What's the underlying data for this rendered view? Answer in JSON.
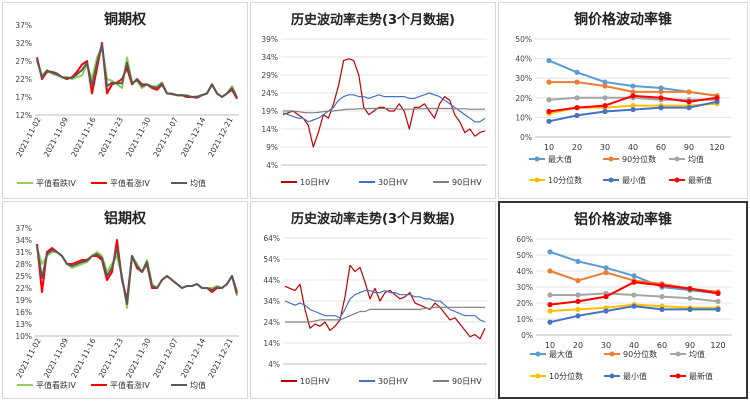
{
  "chart_data": [
    {
      "type": "line",
      "title": "铜期权",
      "ylim": [
        0.12,
        0.37
      ],
      "yticks": [
        "12%",
        "17%",
        "22%",
        "27%",
        "32%",
        "37%"
      ],
      "ytick_values": [
        0.12,
        0.17,
        0.22,
        0.27,
        0.32,
        0.37
      ],
      "xticks": [
        "2021-11-02",
        "2021-11-09",
        "2021-11-16",
        "2021-11-23",
        "2021-11-30",
        "2021-12-07",
        "2021-12-14",
        "2021-12-21"
      ],
      "legend_position": "bottom",
      "series": [
        {
          "name": "平值看跌IV",
          "color": "#92d050",
          "values": [
            0.27,
            0.23,
            0.245,
            0.235,
            0.23,
            0.225,
            0.225,
            0.22,
            0.225,
            0.23,
            0.26,
            0.22,
            0.28,
            0.31,
            0.22,
            0.215,
            0.205,
            0.195,
            0.28,
            0.21,
            0.215,
            0.195,
            0.205,
            0.2,
            0.2,
            0.21,
            0.18,
            0.18,
            0.175,
            0.175,
            0.175,
            0.17,
            0.172,
            0.175,
            0.18,
            0.205,
            0.18,
            0.17,
            0.18,
            0.2,
            0.17
          ]
        },
        {
          "name": "平值看涨IV",
          "color": "#ff0000",
          "values": [
            0.28,
            0.22,
            0.24,
            0.24,
            0.235,
            0.225,
            0.22,
            0.225,
            0.24,
            0.26,
            0.27,
            0.18,
            0.25,
            0.32,
            0.18,
            0.205,
            0.21,
            0.22,
            0.25,
            0.205,
            0.22,
            0.205,
            0.205,
            0.195,
            0.19,
            0.205,
            0.18,
            0.178,
            0.175,
            0.175,
            0.17,
            0.17,
            0.168,
            0.175,
            0.18,
            0.205,
            0.18,
            0.17,
            0.18,
            0.19,
            0.165
          ]
        },
        {
          "name": "均值",
          "color": "#595959",
          "values": [
            0.275,
            0.225,
            0.243,
            0.238,
            0.233,
            0.225,
            0.223,
            0.223,
            0.233,
            0.245,
            0.265,
            0.2,
            0.265,
            0.315,
            0.2,
            0.21,
            0.208,
            0.208,
            0.265,
            0.208,
            0.218,
            0.2,
            0.205,
            0.198,
            0.195,
            0.208,
            0.18,
            0.179,
            0.175,
            0.175,
            0.173,
            0.17,
            0.17,
            0.175,
            0.18,
            0.205,
            0.18,
            0.17,
            0.18,
            0.195,
            0.168
          ]
        }
      ]
    },
    {
      "type": "line",
      "title": "历史波动率走势(3个月数据)",
      "ylim": [
        0.04,
        0.39
      ],
      "yticks": [
        "4%",
        "9%",
        "14%",
        "19%",
        "24%",
        "29%",
        "34%",
        "39%"
      ],
      "ytick_values": [
        0.04,
        0.09,
        0.14,
        0.19,
        0.24,
        0.29,
        0.34,
        0.39
      ],
      "legend_position": "bottom",
      "series": [
        {
          "name": "10日HV",
          "color": "#c00000",
          "values": [
            0.18,
            0.185,
            0.19,
            0.18,
            0.17,
            0.15,
            0.09,
            0.13,
            0.18,
            0.17,
            0.21,
            0.26,
            0.33,
            0.335,
            0.33,
            0.29,
            0.2,
            0.18,
            0.19,
            0.2,
            0.2,
            0.19,
            0.19,
            0.21,
            0.19,
            0.14,
            0.2,
            0.2,
            0.21,
            0.19,
            0.17,
            0.21,
            0.23,
            0.22,
            0.18,
            0.16,
            0.13,
            0.14,
            0.12,
            0.13,
            0.135
          ]
        },
        {
          "name": "30日HV",
          "color": "#4472c4",
          "values": [
            0.185,
            0.18,
            0.175,
            0.17,
            0.17,
            0.16,
            0.165,
            0.17,
            0.18,
            0.19,
            0.2,
            0.22,
            0.23,
            0.235,
            0.235,
            0.23,
            0.23,
            0.225,
            0.23,
            0.235,
            0.23,
            0.23,
            0.23,
            0.23,
            0.23,
            0.225,
            0.225,
            0.23,
            0.235,
            0.24,
            0.235,
            0.23,
            0.22,
            0.21,
            0.2,
            0.19,
            0.18,
            0.17,
            0.16,
            0.16,
            0.17
          ]
        },
        {
          "name": "90日HV",
          "color": "#7f7f7f",
          "values": [
            0.19,
            0.19,
            0.19,
            0.188,
            0.186,
            0.185,
            0.185,
            0.186,
            0.188,
            0.19,
            0.19,
            0.192,
            0.194,
            0.195,
            0.195,
            0.196,
            0.196,
            0.197,
            0.197,
            0.197,
            0.197,
            0.197,
            0.196,
            0.195,
            0.195,
            0.195,
            0.195,
            0.196,
            0.196,
            0.197,
            0.197,
            0.197,
            0.197,
            0.197,
            0.196,
            0.196,
            0.196,
            0.195,
            0.195,
            0.195,
            0.195
          ]
        }
      ]
    },
    {
      "type": "line",
      "title": "铜价格波动率锥",
      "categories": [
        "10",
        "20",
        "30",
        "40",
        "60",
        "90",
        "120"
      ],
      "ylim": [
        0,
        0.5
      ],
      "yticks": [
        "0%",
        "10%",
        "20%",
        "30%",
        "40%",
        "50%"
      ],
      "ytick_values": [
        0,
        0.1,
        0.2,
        0.3,
        0.4,
        0.5
      ],
      "legend_position": "bottom",
      "series": [
        {
          "name": "最大值",
          "color": "#5b9bd5",
          "values": [
            0.39,
            0.33,
            0.28,
            0.26,
            0.25,
            0.23,
            0.21
          ]
        },
        {
          "name": "90分位数",
          "color": "#ed7d31",
          "values": [
            0.28,
            0.28,
            0.26,
            0.23,
            0.23,
            0.23,
            0.21
          ]
        },
        {
          "name": "均值",
          "color": "#a5a5a5",
          "values": [
            0.19,
            0.2,
            0.2,
            0.2,
            0.19,
            0.19,
            0.19
          ]
        },
        {
          "name": "10分位数",
          "color": "#ffc000",
          "values": [
            0.12,
            0.15,
            0.15,
            0.16,
            0.16,
            0.16,
            0.17
          ]
        },
        {
          "name": "最小值",
          "color": "#4472c4",
          "values": [
            0.08,
            0.11,
            0.13,
            0.14,
            0.15,
            0.15,
            0.18
          ]
        },
        {
          "name": "最新值",
          "color": "#ff0000",
          "values": [
            0.13,
            0.15,
            0.16,
            0.21,
            0.2,
            0.18,
            0.2
          ]
        }
      ]
    },
    {
      "type": "line",
      "title": "铝期权",
      "ylim": [
        0.1,
        0.37
      ],
      "yticks": [
        "10%",
        "13%",
        "16%",
        "19%",
        "22%",
        "25%",
        "28%",
        "31%",
        "34%",
        "37%"
      ],
      "ytick_values": [
        0.1,
        0.13,
        0.16,
        0.19,
        0.22,
        0.25,
        0.28,
        0.31,
        0.34,
        0.37
      ],
      "xticks": [
        "2021-11-02",
        "2021-11-09",
        "2021-11-16",
        "2021-11-23",
        "2021-11-30",
        "2021-12-07",
        "2021-12-14",
        "2021-12-21"
      ],
      "legend_position": "bottom",
      "series": [
        {
          "name": "平值看跌IV",
          "color": "#92d050",
          "values": [
            0.32,
            0.28,
            0.3,
            0.31,
            0.31,
            0.3,
            0.28,
            0.27,
            0.275,
            0.28,
            0.285,
            0.3,
            0.31,
            0.3,
            0.26,
            0.28,
            0.3,
            0.25,
            0.17,
            0.3,
            0.28,
            0.26,
            0.29,
            0.23,
            0.22,
            0.24,
            0.25,
            0.24,
            0.23,
            0.22,
            0.225,
            0.225,
            0.23,
            0.22,
            0.22,
            0.22,
            0.225,
            0.22,
            0.23,
            0.25,
            0.2
          ]
        },
        {
          "name": "平值看涨IV",
          "color": "#ff0000",
          "values": [
            0.33,
            0.21,
            0.31,
            0.32,
            0.31,
            0.3,
            0.28,
            0.28,
            0.285,
            0.29,
            0.29,
            0.3,
            0.3,
            0.29,
            0.24,
            0.26,
            0.34,
            0.24,
            0.19,
            0.3,
            0.27,
            0.26,
            0.28,
            0.22,
            0.22,
            0.24,
            0.25,
            0.24,
            0.23,
            0.22,
            0.225,
            0.225,
            0.23,
            0.22,
            0.22,
            0.21,
            0.22,
            0.22,
            0.23,
            0.25,
            0.21
          ]
        },
        {
          "name": "均值",
          "color": "#595959",
          "values": [
            0.325,
            0.245,
            0.305,
            0.315,
            0.31,
            0.3,
            0.28,
            0.275,
            0.28,
            0.285,
            0.288,
            0.3,
            0.305,
            0.295,
            0.25,
            0.27,
            0.32,
            0.245,
            0.18,
            0.3,
            0.275,
            0.26,
            0.285,
            0.225,
            0.22,
            0.24,
            0.25,
            0.24,
            0.23,
            0.22,
            0.225,
            0.225,
            0.23,
            0.22,
            0.22,
            0.215,
            0.222,
            0.22,
            0.23,
            0.25,
            0.205
          ]
        }
      ]
    },
    {
      "type": "line",
      "title": "历史波动率走势(3个月数据)",
      "ylim": [
        0.04,
        0.64
      ],
      "yticks": [
        "4%",
        "14%",
        "24%",
        "34%",
        "44%",
        "54%",
        "64%"
      ],
      "ytick_values": [
        0.04,
        0.14,
        0.24,
        0.34,
        0.44,
        0.54,
        0.64
      ],
      "legend_position": "bottom",
      "series": [
        {
          "name": "10日HV",
          "color": "#c00000",
          "values": [
            0.41,
            0.4,
            0.39,
            0.42,
            0.3,
            0.21,
            0.23,
            0.22,
            0.24,
            0.2,
            0.22,
            0.25,
            0.36,
            0.51,
            0.48,
            0.5,
            0.43,
            0.35,
            0.4,
            0.34,
            0.38,
            0.39,
            0.37,
            0.35,
            0.36,
            0.38,
            0.33,
            0.32,
            0.31,
            0.3,
            0.33,
            0.31,
            0.28,
            0.25,
            0.26,
            0.23,
            0.2,
            0.17,
            0.18,
            0.16,
            0.21
          ]
        },
        {
          "name": "30日HV",
          "color": "#4472c4",
          "values": [
            0.34,
            0.33,
            0.32,
            0.33,
            0.32,
            0.3,
            0.29,
            0.28,
            0.27,
            0.27,
            0.27,
            0.26,
            0.3,
            0.35,
            0.37,
            0.38,
            0.39,
            0.39,
            0.38,
            0.38,
            0.39,
            0.38,
            0.38,
            0.37,
            0.37,
            0.37,
            0.36,
            0.36,
            0.35,
            0.35,
            0.34,
            0.34,
            0.32,
            0.3,
            0.29,
            0.28,
            0.27,
            0.27,
            0.27,
            0.25,
            0.24
          ]
        },
        {
          "name": "90日HV",
          "color": "#7f7f7f",
          "values": [
            0.24,
            0.24,
            0.24,
            0.24,
            0.24,
            0.24,
            0.245,
            0.25,
            0.25,
            0.25,
            0.25,
            0.25,
            0.26,
            0.27,
            0.28,
            0.29,
            0.29,
            0.3,
            0.3,
            0.3,
            0.3,
            0.3,
            0.3,
            0.3,
            0.3,
            0.3,
            0.3,
            0.3,
            0.305,
            0.305,
            0.31,
            0.31,
            0.31,
            0.31,
            0.31,
            0.31,
            0.31,
            0.31,
            0.31,
            0.31,
            0.31
          ]
        }
      ]
    },
    {
      "type": "line",
      "title": "铝价格波动率锥",
      "categories": [
        "10",
        "20",
        "30",
        "40",
        "60",
        "90",
        "120"
      ],
      "ylim": [
        0,
        0.6
      ],
      "yticks": [
        "0%",
        "10%",
        "20%",
        "30%",
        "40%",
        "50%",
        "60%"
      ],
      "ytick_values": [
        0,
        0.1,
        0.2,
        0.3,
        0.4,
        0.5,
        0.6
      ],
      "legend_position": "bottom",
      "series": [
        {
          "name": "最大值",
          "color": "#5b9bd5",
          "values": [
            0.52,
            0.46,
            0.42,
            0.37,
            0.3,
            0.28,
            0.26
          ]
        },
        {
          "name": "90分位数",
          "color": "#ed7d31",
          "values": [
            0.4,
            0.34,
            0.39,
            0.34,
            0.32,
            0.29,
            0.27
          ]
        },
        {
          "name": "均值",
          "color": "#a5a5a5",
          "values": [
            0.25,
            0.25,
            0.26,
            0.25,
            0.24,
            0.23,
            0.21
          ]
        },
        {
          "name": "10分位数",
          "color": "#ffc000",
          "values": [
            0.15,
            0.16,
            0.17,
            0.19,
            0.18,
            0.17,
            0.17
          ]
        },
        {
          "name": "最小值",
          "color": "#4472c4",
          "values": [
            0.08,
            0.12,
            0.15,
            0.18,
            0.16,
            0.16,
            0.16
          ]
        },
        {
          "name": "最新值",
          "color": "#ff0000",
          "values": [
            0.19,
            0.21,
            0.24,
            0.33,
            0.31,
            0.29,
            0.26
          ]
        }
      ]
    }
  ]
}
